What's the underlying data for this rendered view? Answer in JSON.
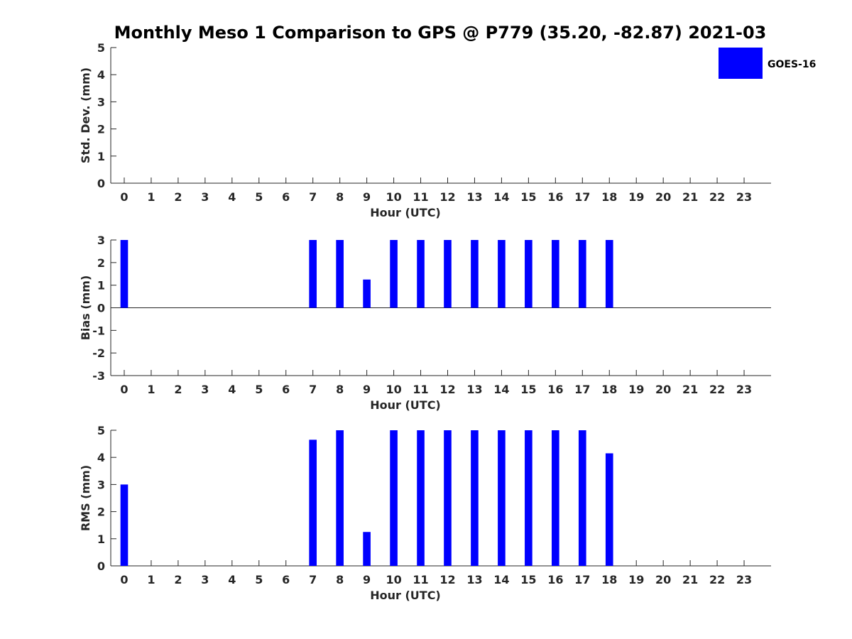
{
  "chart_data": {
    "title": "Monthly Meso 1 Comparison to GPS @ P779 (35.20, -82.87) 2021-03",
    "legend": {
      "label": "GOES-16",
      "color": "#0000ff",
      "placement": "top-right"
    },
    "panels": [
      {
        "type": "bar",
        "ylabel": "Std. Dev. (mm)",
        "xlabel": "Hour (UTC)",
        "ylim": [
          0,
          5
        ],
        "yticks": [
          "0",
          "1",
          "2",
          "3",
          "4",
          "5"
        ],
        "categories": [
          "0",
          "1",
          "2",
          "3",
          "4",
          "5",
          "6",
          "7",
          "8",
          "9",
          "10",
          "11",
          "12",
          "13",
          "14",
          "15",
          "16",
          "17",
          "18",
          "19",
          "20",
          "21",
          "22",
          "23"
        ],
        "values": [
          null,
          null,
          null,
          null,
          null,
          null,
          null,
          null,
          null,
          null,
          null,
          null,
          null,
          null,
          null,
          null,
          null,
          null,
          null,
          null,
          null,
          null,
          null,
          null
        ]
      },
      {
        "type": "bar",
        "ylabel": "Bias (mm)",
        "xlabel": "Hour (UTC)",
        "ylim": [
          -3,
          3
        ],
        "yticks": [
          "-3",
          "-2",
          "-1",
          "0",
          "1",
          "2",
          "3"
        ],
        "zero_line": true,
        "categories": [
          "0",
          "1",
          "2",
          "3",
          "4",
          "5",
          "6",
          "7",
          "8",
          "9",
          "10",
          "11",
          "12",
          "13",
          "14",
          "15",
          "16",
          "17",
          "18",
          "19",
          "20",
          "21",
          "22",
          "23"
        ],
        "values": [
          3,
          null,
          null,
          null,
          null,
          null,
          null,
          3,
          3,
          1.25,
          3,
          3,
          3,
          3,
          3,
          3,
          3,
          3,
          3,
          null,
          null,
          null,
          null,
          null
        ]
      },
      {
        "type": "bar",
        "ylabel": "RMS (mm)",
        "xlabel": "Hour (UTC)",
        "ylim": [
          0,
          5
        ],
        "yticks": [
          "0",
          "1",
          "2",
          "3",
          "4",
          "5"
        ],
        "categories": [
          "0",
          "1",
          "2",
          "3",
          "4",
          "5",
          "6",
          "7",
          "8",
          "9",
          "10",
          "11",
          "12",
          "13",
          "14",
          "15",
          "16",
          "17",
          "18",
          "19",
          "20",
          "21",
          "22",
          "23"
        ],
        "values": [
          3,
          null,
          null,
          null,
          null,
          null,
          null,
          4.65,
          5,
          1.25,
          5,
          5,
          5,
          5,
          5,
          5,
          5,
          5,
          4.15,
          null,
          null,
          null,
          null,
          null
        ]
      }
    ]
  }
}
